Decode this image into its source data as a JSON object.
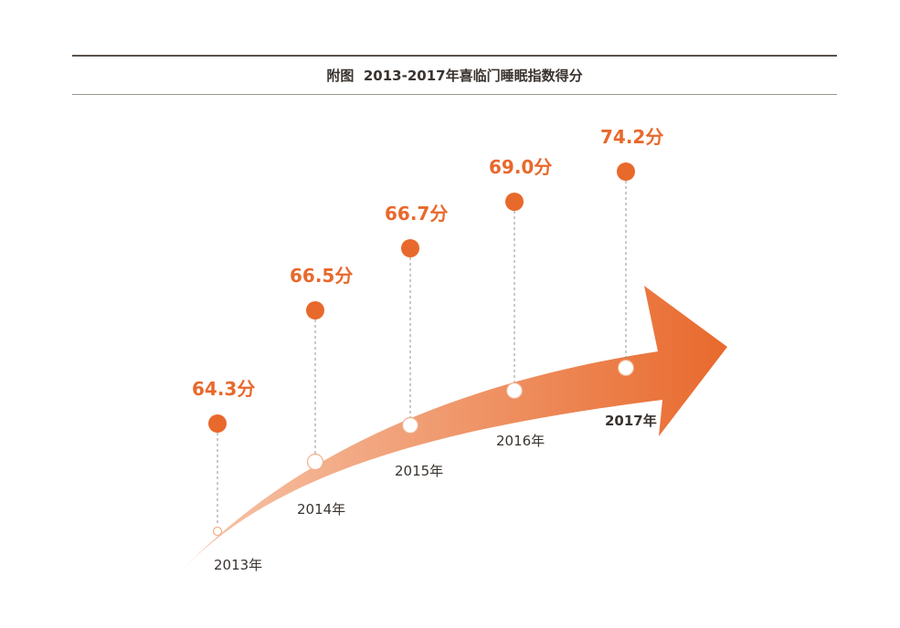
{
  "title": "附图  2013-2017年喜临门睡眠指数得分",
  "colors": {
    "accent": "#e8692c",
    "arrow_light": "#f7c6ab",
    "arrow_dark": "#e8692c",
    "rule": "#5b524b",
    "text": "#3a3430"
  },
  "chart_data": {
    "type": "line",
    "title": "附图  2013-2017年喜临门睡眠指数得分",
    "categories": [
      "2013年",
      "2014年",
      "2015年",
      "2016年",
      "2017年"
    ],
    "values": [
      64.3,
      66.5,
      66.7,
      69.0,
      74.2
    ],
    "value_labels": [
      "64.3分",
      "66.5分",
      "66.7分",
      "69.0分",
      "74.2分"
    ],
    "unit": "分",
    "grid": false,
    "legend": "none"
  }
}
